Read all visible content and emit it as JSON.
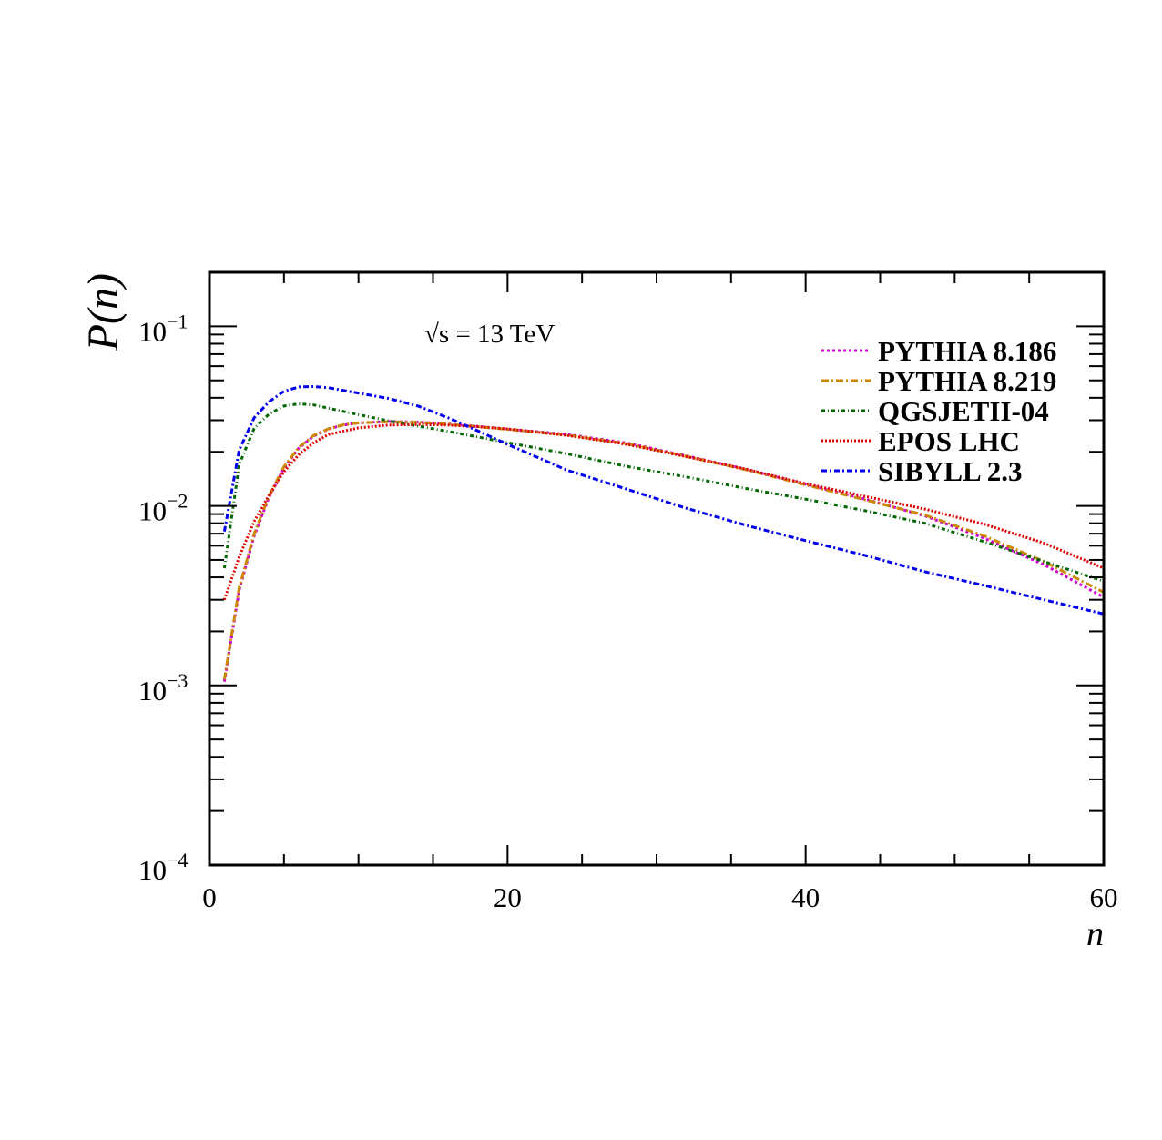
{
  "chart_data": {
    "type": "line",
    "title": "",
    "xlabel": "n",
    "ylabel": "P(n)",
    "xlim": [
      0,
      60
    ],
    "ylim": [
      0.0001,
      0.2
    ],
    "yscale": "log",
    "grid": false,
    "legend_position": "top-right",
    "annotation": "√s = 13 TeV",
    "x_ticks": [
      {
        "value": 0,
        "label": "0"
      },
      {
        "value": 20,
        "label": "20"
      },
      {
        "value": 40,
        "label": "40"
      },
      {
        "value": 60,
        "label": "60"
      }
    ],
    "y_ticks": [
      {
        "value": 0.0001,
        "base": "10",
        "exp": "−4"
      },
      {
        "value": 0.001,
        "base": "10",
        "exp": "−3"
      },
      {
        "value": 0.01,
        "base": "10",
        "exp": "−2"
      },
      {
        "value": 0.1,
        "base": "10",
        "exp": "−1"
      }
    ],
    "series": [
      {
        "name": "PYTHIA 8.186",
        "color": "#cc00cc",
        "dash": "3,3",
        "points": [
          [
            1,
            0.00105
          ],
          [
            2,
            0.0034
          ],
          [
            3,
            0.0068
          ],
          [
            4,
            0.0112
          ],
          [
            5,
            0.0162
          ],
          [
            6,
            0.021
          ],
          [
            7,
            0.0245
          ],
          [
            8,
            0.0268
          ],
          [
            9,
            0.0282
          ],
          [
            10,
            0.029
          ],
          [
            12,
            0.0295
          ],
          [
            14,
            0.0293
          ],
          [
            16,
            0.0286
          ],
          [
            18,
            0.0277
          ],
          [
            20,
            0.0268
          ],
          [
            24,
            0.025
          ],
          [
            28,
            0.0224
          ],
          [
            32,
            0.019
          ],
          [
            36,
            0.016
          ],
          [
            40,
            0.0132
          ],
          [
            44,
            0.0109
          ],
          [
            48,
            0.0088
          ],
          [
            52,
            0.0066
          ],
          [
            56,
            0.0047
          ],
          [
            60,
            0.0031
          ]
        ]
      },
      {
        "name": "PYTHIA 8.219",
        "color": "#cc8800",
        "dash": "8,3,2,3",
        "points": [
          [
            1,
            0.00108
          ],
          [
            2,
            0.0035
          ],
          [
            3,
            0.007
          ],
          [
            4,
            0.0114
          ],
          [
            5,
            0.0165
          ],
          [
            6,
            0.0212
          ],
          [
            7,
            0.0247
          ],
          [
            8,
            0.0269
          ],
          [
            9,
            0.0283
          ],
          [
            10,
            0.029
          ],
          [
            12,
            0.0294
          ],
          [
            14,
            0.0292
          ],
          [
            16,
            0.0285
          ],
          [
            18,
            0.0276
          ],
          [
            20,
            0.0267
          ],
          [
            24,
            0.0248
          ],
          [
            28,
            0.0222
          ],
          [
            32,
            0.0189
          ],
          [
            36,
            0.0159
          ],
          [
            40,
            0.0131
          ],
          [
            44,
            0.0108
          ],
          [
            48,
            0.0089
          ],
          [
            52,
            0.0068
          ],
          [
            56,
            0.0049
          ],
          [
            60,
            0.0033
          ]
        ]
      },
      {
        "name": "QGSJETII-04",
        "color": "#006600",
        "dash": "4,3,1,3",
        "points": [
          [
            1,
            0.0045
          ],
          [
            2,
            0.017
          ],
          [
            3,
            0.027
          ],
          [
            4,
            0.0325
          ],
          [
            5,
            0.036
          ],
          [
            6,
            0.037
          ],
          [
            7,
            0.0365
          ],
          [
            8,
            0.035
          ],
          [
            10,
            0.0322
          ],
          [
            12,
            0.0298
          ],
          [
            14,
            0.0278
          ],
          [
            16,
            0.026
          ],
          [
            18,
            0.0242
          ],
          [
            20,
            0.0225
          ],
          [
            24,
            0.0195
          ],
          [
            28,
            0.0166
          ],
          [
            32,
            0.0145
          ],
          [
            36,
            0.0125
          ],
          [
            40,
            0.0109
          ],
          [
            44,
            0.0094
          ],
          [
            48,
            0.008
          ],
          [
            52,
            0.0063
          ],
          [
            56,
            0.0049
          ],
          [
            60,
            0.0038
          ]
        ]
      },
      {
        "name": "EPOS LHC",
        "color": "#dd0000",
        "dash": "2,2",
        "points": [
          [
            1,
            0.003
          ],
          [
            2,
            0.0052
          ],
          [
            3,
            0.0082
          ],
          [
            4,
            0.0115
          ],
          [
            5,
            0.0155
          ],
          [
            6,
            0.0193
          ],
          [
            7,
            0.0225
          ],
          [
            8,
            0.025
          ],
          [
            10,
            0.0272
          ],
          [
            12,
            0.0282
          ],
          [
            14,
            0.0284
          ],
          [
            16,
            0.0282
          ],
          [
            18,
            0.0276
          ],
          [
            20,
            0.0268
          ],
          [
            24,
            0.0247
          ],
          [
            28,
            0.022
          ],
          [
            32,
            0.0188
          ],
          [
            36,
            0.016
          ],
          [
            40,
            0.0133
          ],
          [
            44,
            0.0113
          ],
          [
            48,
            0.0096
          ],
          [
            52,
            0.0079
          ],
          [
            56,
            0.0062
          ],
          [
            60,
            0.0045
          ]
        ]
      },
      {
        "name": "SIBYLL 2.3",
        "color": "#0000ee",
        "dash": "6,3,2,3",
        "points": [
          [
            1,
            0.0072
          ],
          [
            2,
            0.0205
          ],
          [
            3,
            0.031
          ],
          [
            4,
            0.038
          ],
          [
            5,
            0.0435
          ],
          [
            6,
            0.046
          ],
          [
            7,
            0.0462
          ],
          [
            8,
            0.0455
          ],
          [
            10,
            0.0425
          ],
          [
            12,
            0.0397
          ],
          [
            14,
            0.036
          ],
          [
            16,
            0.031
          ],
          [
            18,
            0.0262
          ],
          [
            20,
            0.022
          ],
          [
            24,
            0.0158
          ],
          [
            28,
            0.0124
          ],
          [
            32,
            0.0097
          ],
          [
            36,
            0.0078
          ],
          [
            40,
            0.0064
          ],
          [
            44,
            0.0053
          ],
          [
            48,
            0.0043
          ],
          [
            52,
            0.0036
          ],
          [
            56,
            0.003
          ],
          [
            60,
            0.0025
          ]
        ]
      }
    ]
  }
}
